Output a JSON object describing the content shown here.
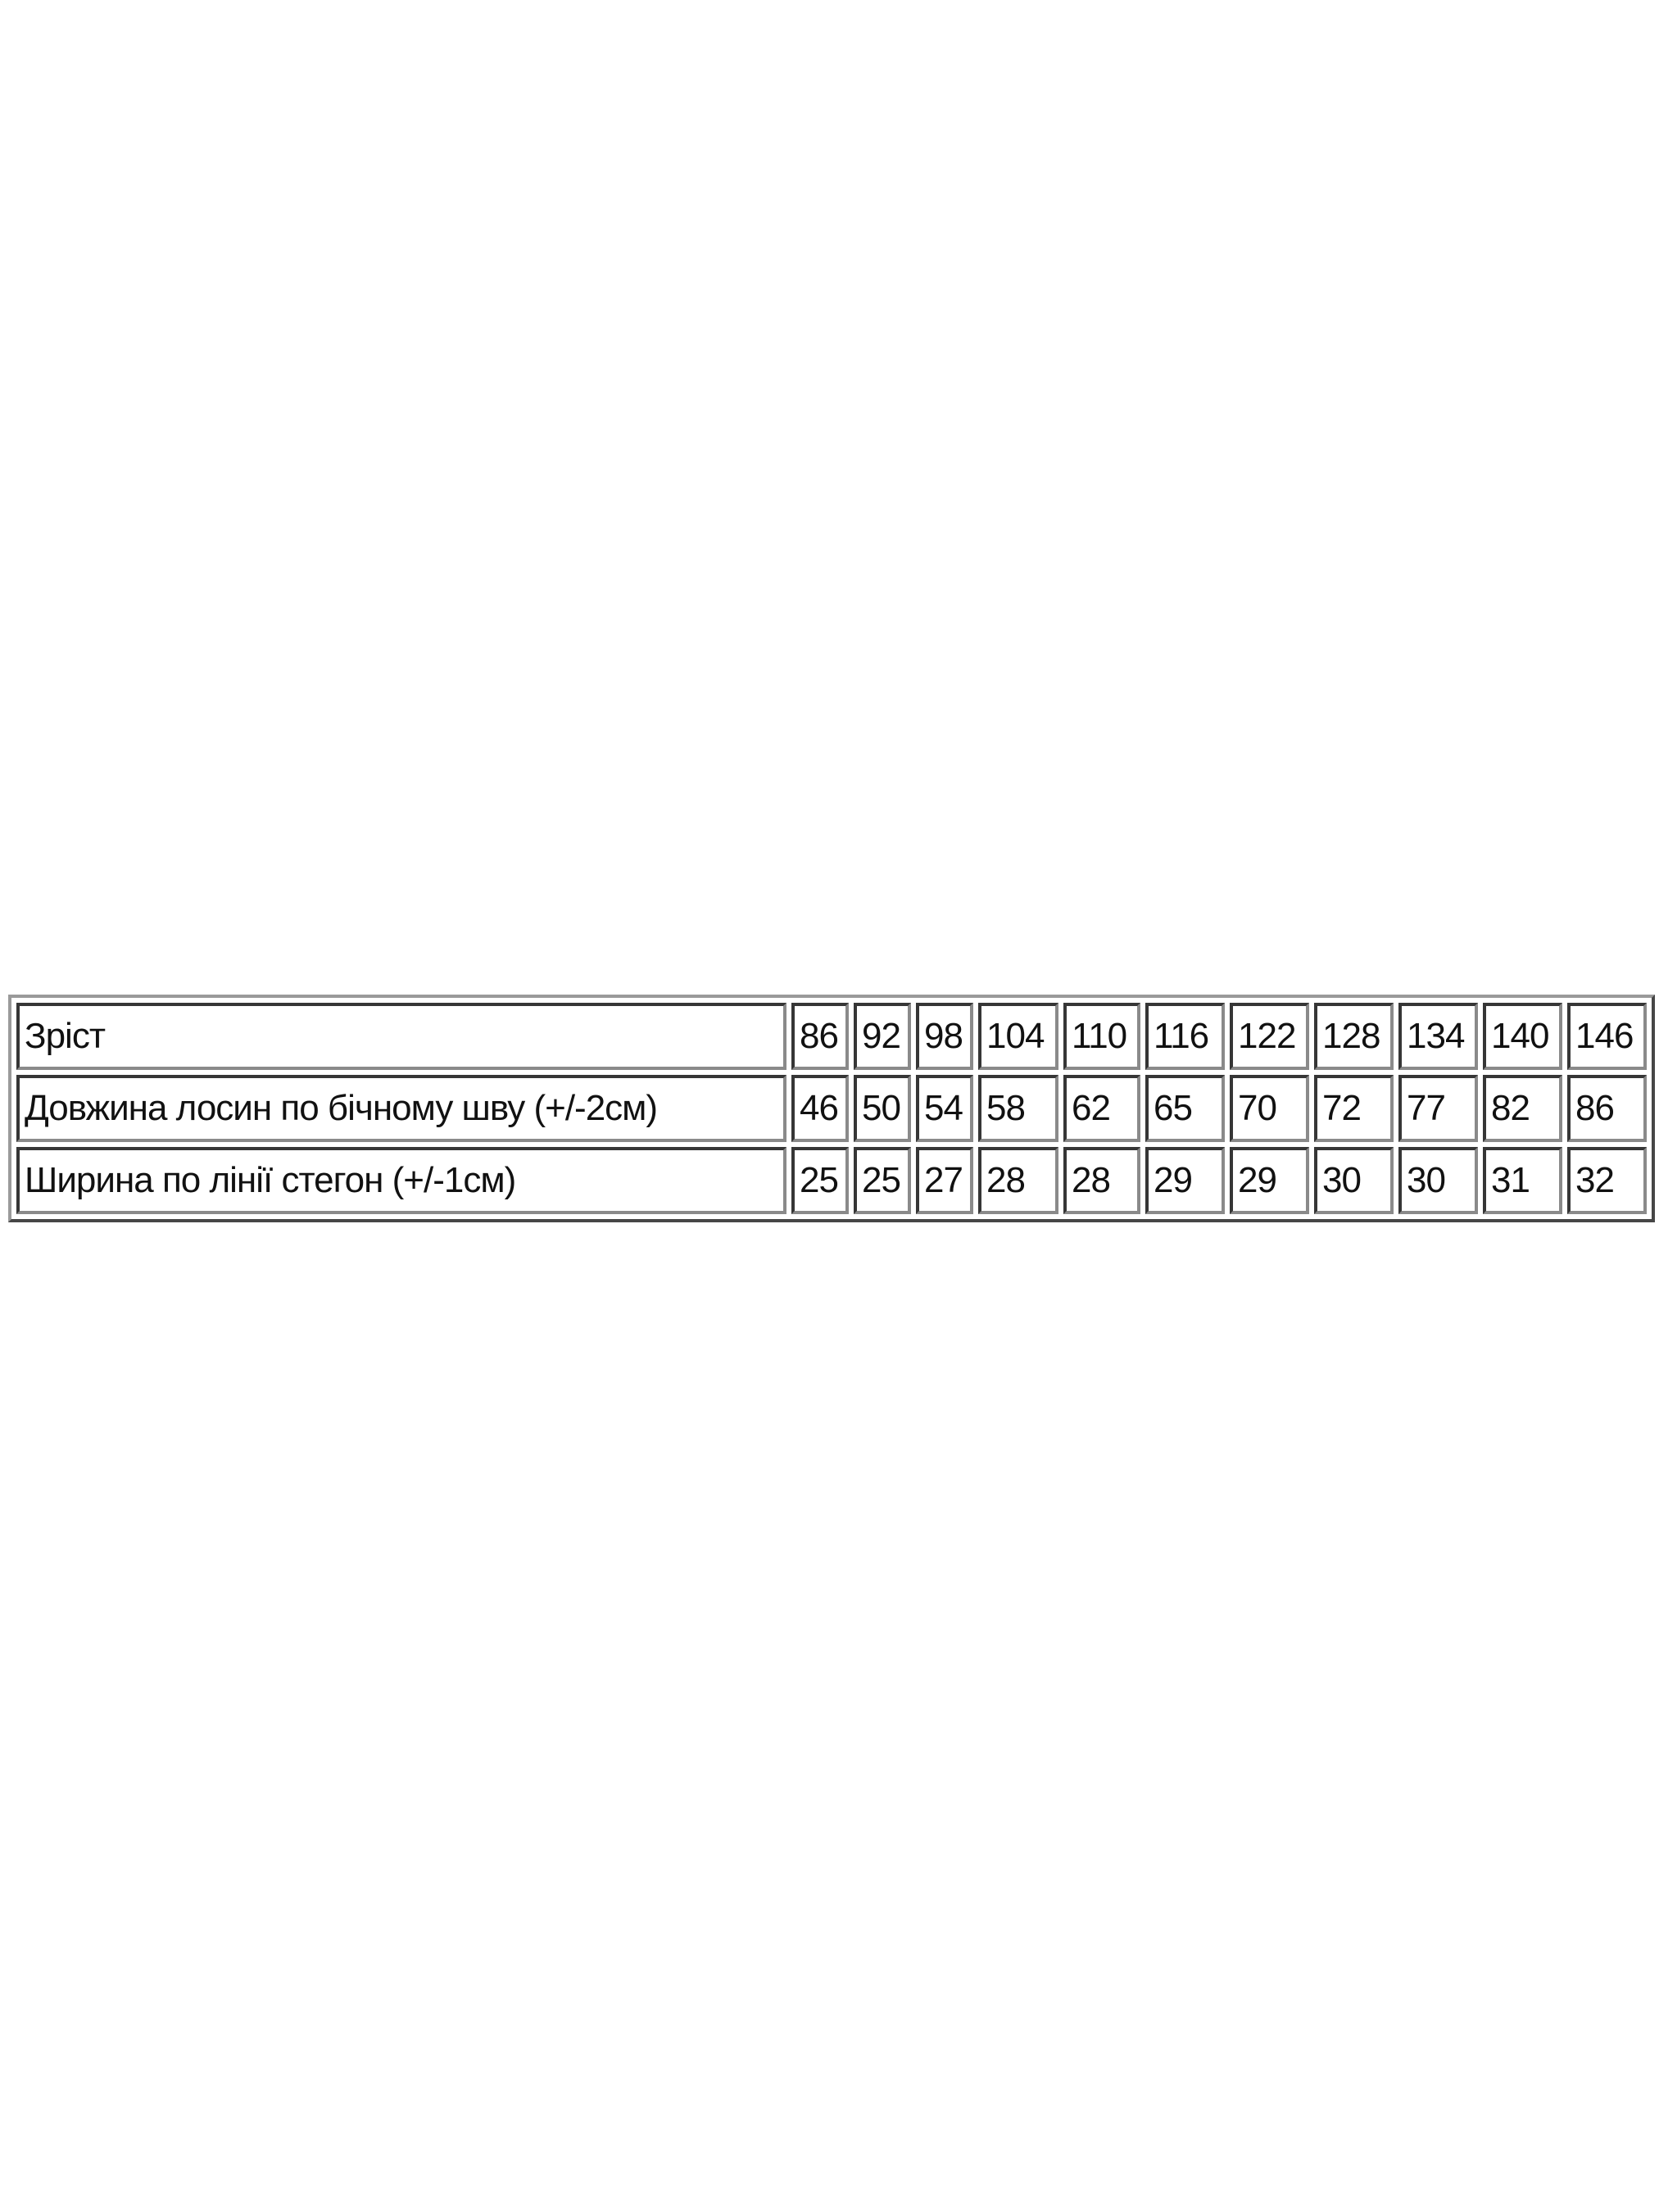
{
  "table": {
    "rows": [
      {
        "label": "Зріст",
        "values": [
          "86",
          "92",
          "98",
          "104",
          "110",
          "116",
          "122",
          "128",
          "134",
          "140",
          "146"
        ]
      },
      {
        "label": "Довжина лосин по бічному шву (+/-2см)",
        "values": [
          "46",
          "50",
          "54",
          "58",
          "62",
          "65",
          "70",
          "72",
          "77",
          "82",
          "86"
        ]
      },
      {
        "label": "Ширина по лінії стегон (+/-1см)",
        "values": [
          "25",
          "25",
          "27",
          "28",
          "28",
          "29",
          "29",
          "30",
          "30",
          "31",
          "32"
        ]
      }
    ]
  }
}
